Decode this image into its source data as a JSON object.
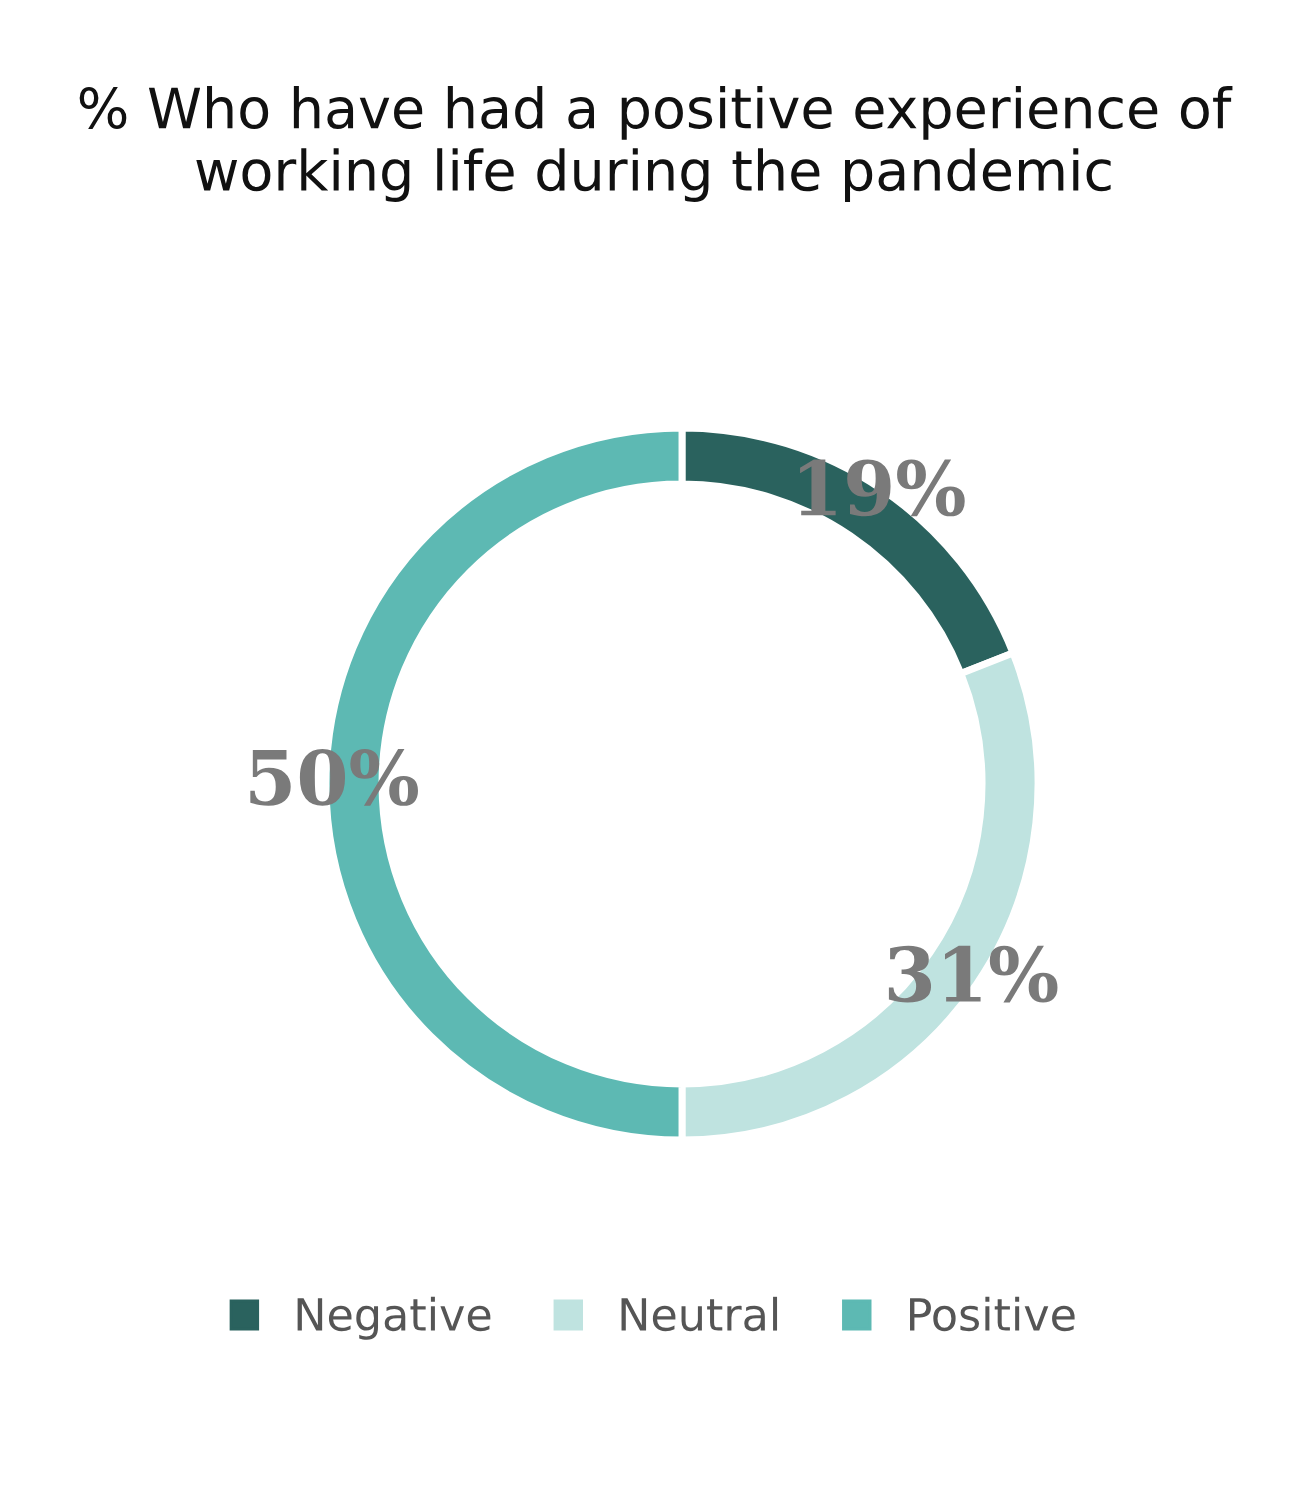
{
  "chart_data": {
    "type": "donut",
    "title": "% Who have had a positive experience of working life during the pandemic",
    "categories": [
      "Negative",
      "Neutral",
      "Positive"
    ],
    "values": [
      19,
      31,
      50
    ],
    "colors": [
      "#2a625e",
      "#bfe3e0",
      "#5db9b3"
    ],
    "value_labels": [
      "19%",
      "31%",
      "50%"
    ],
    "legend": "bottom"
  }
}
